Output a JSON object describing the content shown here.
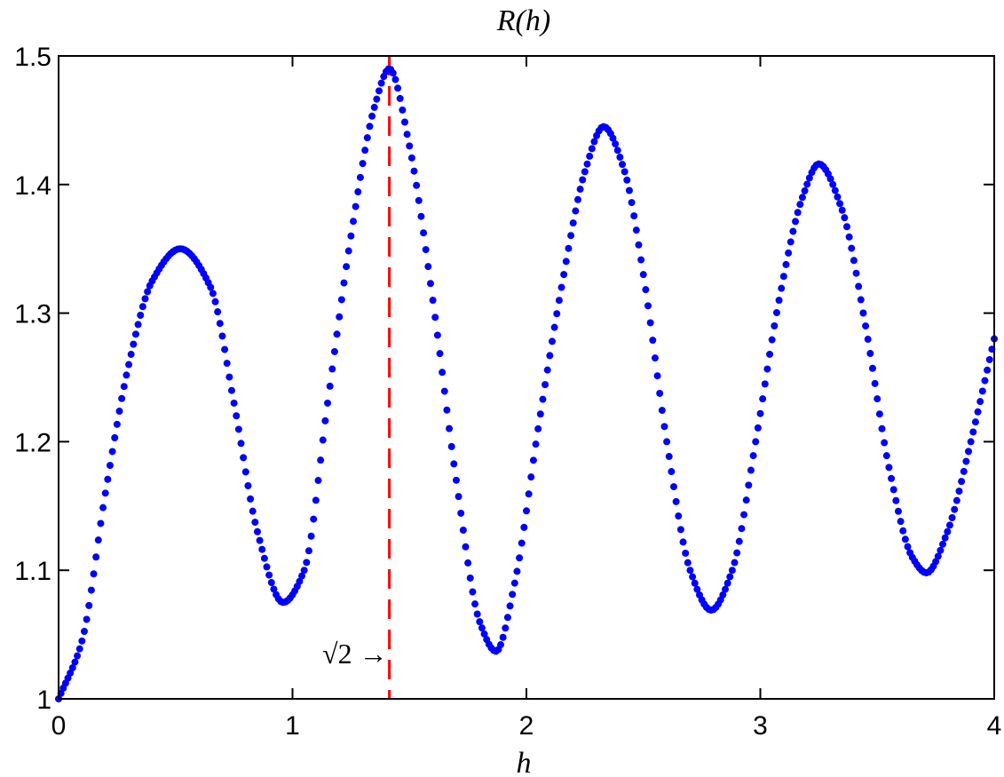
{
  "chart_data": {
    "type": "scatter",
    "title": "R(h)",
    "xlabel": "h",
    "ylabel": "",
    "xlim": [
      0,
      4
    ],
    "ylim": [
      1,
      1.5
    ],
    "xticks": [
      0,
      1,
      2,
      3,
      4
    ],
    "xtick_labels": [
      "0",
      "1",
      "2",
      "3",
      "4"
    ],
    "yticks": [
      1,
      1.1,
      1.2,
      1.3,
      1.4,
      1.5
    ],
    "ytick_labels": [
      "1",
      "1.1",
      "1.2",
      "1.3",
      "1.4",
      "1.5"
    ],
    "grid": false,
    "marker_color": "#0000ff",
    "series": [
      {
        "points": [
          [
            0.0,
            1.0
          ],
          [
            0.1,
            1.045
          ],
          [
            0.2,
            1.16
          ],
          [
            0.3,
            1.26
          ],
          [
            0.4,
            1.325
          ],
          [
            0.52,
            1.35
          ],
          [
            0.65,
            1.32
          ],
          [
            0.75,
            1.23
          ],
          [
            0.85,
            1.13
          ],
          [
            0.96,
            1.075
          ],
          [
            1.05,
            1.1
          ],
          [
            1.15,
            1.23
          ],
          [
            1.25,
            1.36
          ],
          [
            1.35,
            1.46
          ],
          [
            1.414,
            1.49
          ],
          [
            1.5,
            1.43
          ],
          [
            1.6,
            1.31
          ],
          [
            1.7,
            1.17
          ],
          [
            1.8,
            1.06
          ],
          [
            1.87,
            1.037
          ],
          [
            1.95,
            1.09
          ],
          [
            2.05,
            1.21
          ],
          [
            2.15,
            1.32
          ],
          [
            2.25,
            1.41
          ],
          [
            2.33,
            1.445
          ],
          [
            2.42,
            1.41
          ],
          [
            2.5,
            1.33
          ],
          [
            2.6,
            1.2
          ],
          [
            2.7,
            1.1
          ],
          [
            2.79,
            1.069
          ],
          [
            2.88,
            1.1
          ],
          [
            2.98,
            1.2
          ],
          [
            3.08,
            1.31
          ],
          [
            3.18,
            1.39
          ],
          [
            3.25,
            1.416
          ],
          [
            3.35,
            1.38
          ],
          [
            3.45,
            1.29
          ],
          [
            3.55,
            1.18
          ],
          [
            3.65,
            1.11
          ],
          [
            3.71,
            1.098
          ],
          [
            3.8,
            1.13
          ],
          [
            3.9,
            1.2
          ],
          [
            4.0,
            1.28
          ]
        ]
      }
    ],
    "vline": {
      "x": 1.414,
      "color": "#ff0000",
      "style": "dashed"
    },
    "annotation": {
      "text": "√2 →",
      "x": 1.0,
      "y": 1.025
    }
  }
}
